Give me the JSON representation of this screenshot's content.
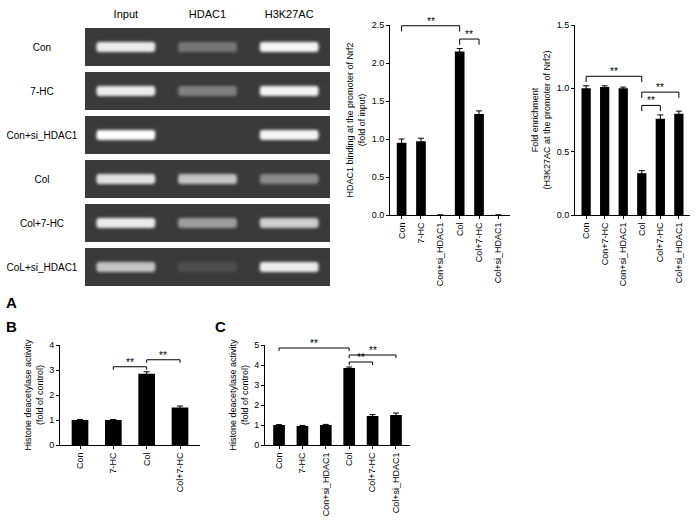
{
  "panel_labels": [
    "A",
    "B",
    "C"
  ],
  "gel": {
    "lanes": [
      "Input",
      "HDAC1",
      "H3K27AC"
    ],
    "rows": [
      {
        "label": "Con",
        "intensity": [
          0.9,
          0.3,
          0.95
        ]
      },
      {
        "label": "7-HC",
        "intensity": [
          0.9,
          0.35,
          0.95
        ]
      },
      {
        "label": "Con+si_HDAC1",
        "intensity": [
          1.0,
          0.0,
          0.95
        ]
      },
      {
        "label": "Col",
        "intensity": [
          0.85,
          0.7,
          0.4
        ]
      },
      {
        "label": "Col+7-HC",
        "intensity": [
          0.9,
          0.5,
          0.75
        ]
      },
      {
        "label": "CoL+si_HDAC1",
        "intensity": [
          0.7,
          0.1,
          0.9
        ]
      }
    ]
  },
  "chart_data": [
    {
      "type": "bar",
      "y_label": "HDAC1 binding at the promoter of Nrf2\n(fold of input)",
      "categories": [
        "Con",
        "7-HC",
        "Con+si_HDAC1",
        "Col",
        "Col+7-HC",
        "Col+si_HDAC1"
      ],
      "values": [
        0.95,
        0.97,
        0,
        2.15,
        1.33,
        0
      ],
      "errors": [
        0.05,
        0.04,
        0,
        0.04,
        0.04,
        0
      ],
      "color": "#000000",
      "ylim": [
        0,
        2.5
      ],
      "yticks": [
        {
          "value": 0,
          "label": "0.0"
        },
        {
          "value": 0.5,
          "label": "0.5"
        },
        {
          "value": 1,
          "label": "1.0"
        },
        {
          "value": 1.5,
          "label": "1.5"
        },
        {
          "value": 2,
          "label": "2.0"
        },
        {
          "value": 2.5,
          "label": "2.5"
        }
      ],
      "significance": [
        {
          "between": [
            "Con",
            "Col"
          ],
          "label": "**"
        },
        {
          "between": [
            "Col",
            "Col+7-HC"
          ],
          "label": "**"
        }
      ],
      "grid": false
    },
    {
      "type": "bar",
      "y_label": "Fold enrichment\n(H3K27AC at the promoter of Nrf2)",
      "categories": [
        "Con",
        "Con+7-HC",
        "Con+si_HDAC1",
        "Col",
        "Col+7-HC",
        "Col+si_HDAC1"
      ],
      "values": [
        1.0,
        1.01,
        1.0,
        0.33,
        0.76,
        0.8
      ],
      "errors": [
        0.02,
        0.01,
        0.01,
        0.02,
        0.03,
        0.02
      ],
      "color": "#000000",
      "ylim": [
        0,
        1.5
      ],
      "yticks": [
        {
          "value": 0,
          "label": "0.0"
        },
        {
          "value": 0.5,
          "label": "0.5"
        },
        {
          "value": 1,
          "label": "1.0"
        },
        {
          "value": 1.5,
          "label": "1.5"
        }
      ],
      "significance": [
        {
          "between": [
            "Con",
            "Col"
          ],
          "label": "**"
        },
        {
          "between": [
            "Col",
            "Col+7-HC"
          ],
          "label": "**"
        },
        {
          "between": [
            "Col",
            "Col+si_HDAC1"
          ],
          "label": "**"
        }
      ],
      "grid": false
    },
    {
      "type": "bar",
      "y_label": "Histone deacetylase activity\n(fold of control)",
      "categories": [
        "Con",
        "7-HC",
        "Col",
        "Col+7-HC"
      ],
      "values": [
        1.0,
        1.0,
        2.85,
        1.5
      ],
      "errors": [
        0.02,
        0.02,
        0.08,
        0.06
      ],
      "color": "#000000",
      "ylim": [
        0,
        4
      ],
      "yticks": [
        0,
        1,
        2,
        3,
        4
      ],
      "significance": [
        {
          "between": [
            "7-HC",
            "Col"
          ],
          "label": "**"
        },
        {
          "between": [
            "Col",
            "Col+7-HC"
          ],
          "label": "**"
        }
      ],
      "grid": false
    },
    {
      "type": "bar",
      "y_label": "Histone deacetylase activity\n(fold of control)",
      "categories": [
        "Con",
        "7-HC",
        "Con+si_HDAC1",
        "Col",
        "Col+7-HC",
        "Col+si_HDAC1"
      ],
      "values": [
        1.0,
        0.95,
        1.0,
        3.85,
        1.45,
        1.5
      ],
      "errors": [
        0.02,
        0.03,
        0.03,
        0.05,
        0.07,
        0.1
      ],
      "color": "#000000",
      "ylim": [
        0,
        5
      ],
      "yticks": [
        0,
        1,
        2,
        3,
        4,
        5
      ],
      "significance": [
        {
          "between": [
            "Con",
            "Col"
          ],
          "label": "**"
        },
        {
          "between": [
            "Col",
            "Col+7-HC"
          ],
          "label": "**"
        },
        {
          "between": [
            "Col",
            "Col+si_HDAC1"
          ],
          "label": "**"
        }
      ],
      "grid": false
    }
  ]
}
